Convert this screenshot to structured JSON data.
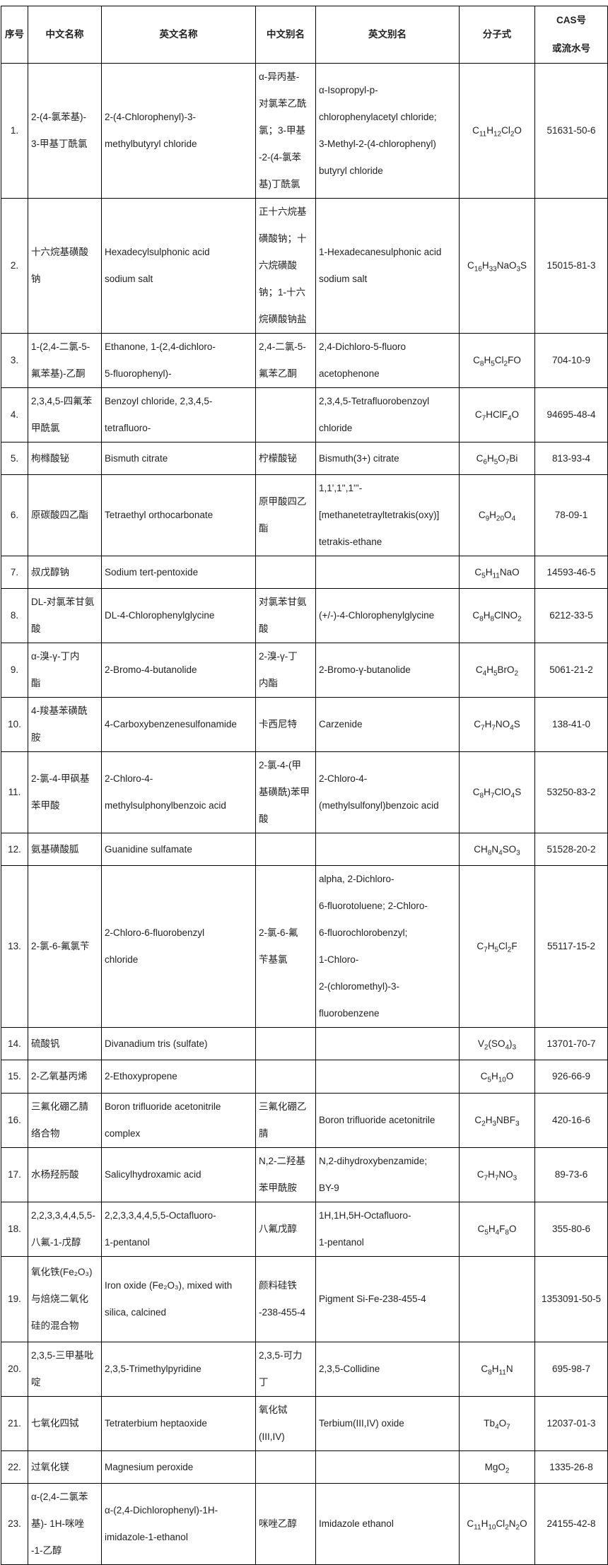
{
  "header": {
    "seq": "序号",
    "cn_name": "中文名称",
    "en_name": "英文名称",
    "cn_alias": "中文别名",
    "en_alias": "英文别名",
    "formula": "分子式",
    "cas": "CAS号\n或流水号"
  },
  "rows": [
    {
      "seq": "1.",
      "cn_name": "2-(4-氯苯基)-\n3-甲基丁酰氯",
      "en_name": "2-(4-Chlorophenyl)-3-\nmethylbutyryl chloride",
      "cn_alias": "α-异丙基-\n对氯苯乙酰\n氯；3-甲基\n-2-(4-氯苯\n基)丁酰氯",
      "en_alias": "α-Isopropyl-p-\nchlorophenylacetyl chloride;\n3-Methyl-2-(4-chlorophenyl)\nbutyryl chloride",
      "formula": "C11H12Cl2O",
      "cas": "51631-50-6"
    },
    {
      "seq": "2.",
      "cn_name": "十六烷基磺酸\n钠",
      "en_name": "Hexadecylsulphonic acid\nsodium salt",
      "cn_alias": "正十六烷基\n磺酸钠；十\n六烷磺酸\n钠；1-十六\n烷磺酸钠盐",
      "en_alias": "1-Hexadecanesulphonic acid\nsodium salt",
      "formula": "C16H33NaO3S",
      "cas": "15015-81-3"
    },
    {
      "seq": "3.",
      "cn_name": "1-(2,4-二氯-5-\n氟苯基)-乙酮",
      "en_name": "Ethanone, 1-(2,4-dichloro-\n5-fluorophenyl)-",
      "cn_alias": "2,4-二氯-5-\n氟苯乙酮",
      "en_alias": "2,4-Dichloro-5-fluoro\nacetophenone",
      "formula": "C8H5Cl2FO",
      "cas": "704-10-9"
    },
    {
      "seq": "4.",
      "cn_name": "2,3,4,5-四氟苯\n甲酰氯",
      "en_name": "Benzoyl chloride, 2,3,4,5-\ntetrafluoro-",
      "cn_alias": "",
      "en_alias": "2,3,4,5-Tetrafluorobenzoyl\nchloride",
      "formula": "C7HClF4O",
      "cas": "94695-48-4"
    },
    {
      "seq": "5.",
      "cn_name": "枸橼酸铋",
      "en_name": "Bismuth citrate",
      "cn_alias": "柠檬酸铋",
      "en_alias": "Bismuth(3+) citrate",
      "formula": "C6H5O7Bi",
      "cas": "813-93-4"
    },
    {
      "seq": "6.",
      "cn_name": "原碳酸四乙酯",
      "en_name": "Tetraethyl orthocarbonate",
      "cn_alias": "原甲酸四乙\n酯",
      "en_alias": "1,1',1'',1'''-\n[methanetetrayltetrakis(oxy)]\ntetrakis-ethane",
      "formula": "C9H20O4",
      "cas": "78-09-1"
    },
    {
      "seq": "7.",
      "cn_name": "叔戊醇钠",
      "en_name": "Sodium tert-pentoxide",
      "cn_alias": "",
      "en_alias": "",
      "formula": "C5H11NaO",
      "cas": "14593-46-5"
    },
    {
      "seq": "8.",
      "cn_name": "DL-对氯苯甘氨\n酸",
      "en_name": "DL-4-Chlorophenylglycine",
      "cn_alias": "对氯苯甘氨\n酸",
      "en_alias": "(+/-)-4-Chlorophenylglycine",
      "formula": "C8H8ClNO2",
      "cas": "6212-33-5"
    },
    {
      "seq": "9.",
      "cn_name": "α-溴-γ-丁内\n酯",
      "en_name": "2-Bromo-4-butanolide",
      "cn_alias": "2-溴-γ-丁\n内酯",
      "en_alias": "2-Bromo-γ-butanolide",
      "formula": "C4H5BrO2",
      "cas": "5061-21-2"
    },
    {
      "seq": "10.",
      "cn_name": "4-羧基苯磺酰\n胺",
      "en_name": "4-Carboxybenzenesulfonamide",
      "cn_alias": "卡西尼特",
      "en_alias": "Carzenide",
      "formula": "C7H7NO4S",
      "cas": "138-41-0"
    },
    {
      "seq": "11.",
      "cn_name": "2-氯-4-甲砜基\n苯甲酸",
      "en_name": "2-Chloro-4-\nmethylsulphonylbenzoic acid",
      "cn_alias": "2-氯-4-(甲\n基磺酰)苯甲\n酸",
      "en_alias": "2-Chloro-4-\n(methylsulfonyl)benzoic acid",
      "formula": "C8H7ClO4S",
      "cas": "53250-83-2"
    },
    {
      "seq": "12.",
      "cn_name": "氨基磺酸胍",
      "en_name": "Guanidine sulfamate",
      "cn_alias": "",
      "en_alias": "",
      "formula": "CH8N4SO3",
      "cas": "51528-20-2"
    },
    {
      "seq": "13.",
      "cn_name": "2-氯-6-氟氯苄",
      "en_name": "2-Chloro-6-fluorobenzyl\nchloride",
      "cn_alias": "2-氯-6-氟\n苄基氯",
      "en_alias": "alpha, 2-Dichloro-\n6-fluorotoluene; 2-Chloro-\n6-fluorochlorobenzyl;\n1-Chloro-\n2-(chloromethyl)-3-\nfluorobenzene",
      "formula": "C7H5Cl2F",
      "cas": "55117-15-2"
    },
    {
      "seq": "14.",
      "cn_name": "硫酸钒",
      "en_name": "Divanadium tris (sulfate)",
      "cn_alias": "",
      "en_alias": "",
      "formula": "V2(SO4)3",
      "cas": "13701-70-7"
    },
    {
      "seq": "15.",
      "cn_name": "2-乙氧基丙烯",
      "en_name": "2-Ethoxypropene",
      "cn_alias": "",
      "en_alias": "",
      "formula": "C5H10O",
      "cas": "926-66-9"
    },
    {
      "seq": "16.",
      "cn_name": "三氟化硼乙腈\n络合物",
      "en_name": "Boron trifluoride acetonitrile\ncomplex",
      "cn_alias": "三氟化硼乙\n腈",
      "en_alias": "Boron trifluoride acetonitrile",
      "formula": "C2H3NBF3",
      "cas": "420-16-6"
    },
    {
      "seq": "17.",
      "cn_name": "水杨羟肟酸",
      "en_name": "Salicylhydroxamic acid",
      "cn_alias": "N,2-二羟基\n苯甲酰胺",
      "en_alias": "N,2-dihydroxybenzamide;\nBY-9",
      "formula": "C7H7NO3",
      "cas": "89-73-6"
    },
    {
      "seq": "18.",
      "cn_name": "2,2,3,3,4,4,5,5-\n八氟-1-戊醇",
      "en_name": "2,2,3,3,4,4,5,5-Octafluoro-\n1-pentanol",
      "cn_alias": "八氟戊醇",
      "en_alias": "1H,1H,5H-Octafluoro-\n1-pentanol",
      "formula": "C5H4F8O",
      "cas": "355-80-6"
    },
    {
      "seq": "19.",
      "cn_name": "氧化铁(Fe₂O₃)\n与焙烧二氧化\n硅的混合物",
      "en_name": "Iron oxide (Fe₂O₃), mixed with\nsilica, calcined",
      "cn_alias": "颜料硅铁\n-238-455-4",
      "en_alias": "Pigment Si-Fe-238-455-4",
      "formula": "",
      "cas": "1353091-50-5"
    },
    {
      "seq": "20.",
      "cn_name": "2,3,5-三甲基吡\n啶",
      "en_name": "2,3,5-Trimethylpyridine",
      "cn_alias": "2,3,5-可力\n丁",
      "en_alias": "2,3,5-Collidine",
      "formula": "C8H11N",
      "cas": "695-98-7"
    },
    {
      "seq": "21.",
      "cn_name": "七氧化四铽",
      "en_name": "Tetraterbium heptaoxide",
      "cn_alias": "氧化铽\n(III,IV)",
      "en_alias": "Terbium(III,IV) oxide",
      "formula": "Tb4O7",
      "cas": "12037-01-3"
    },
    {
      "seq": "22.",
      "cn_name": "过氧化镁",
      "en_name": "Magnesium peroxide",
      "cn_alias": "",
      "en_alias": "",
      "formula": "MgO2",
      "cas": "1335-26-8"
    },
    {
      "seq": "23.",
      "cn_name": "α-(2,4-二氯苯\n基)- 1H-咪唑\n-1-乙醇",
      "en_name": "α-(2,4-Dichlorophenyl)-1H-\nimidazole-1-ethanol",
      "cn_alias": "咪唑乙醇",
      "en_alias": "Imidazole ethanol",
      "formula": "C11H10Cl2N2O",
      "cas": "24155-42-8"
    }
  ]
}
